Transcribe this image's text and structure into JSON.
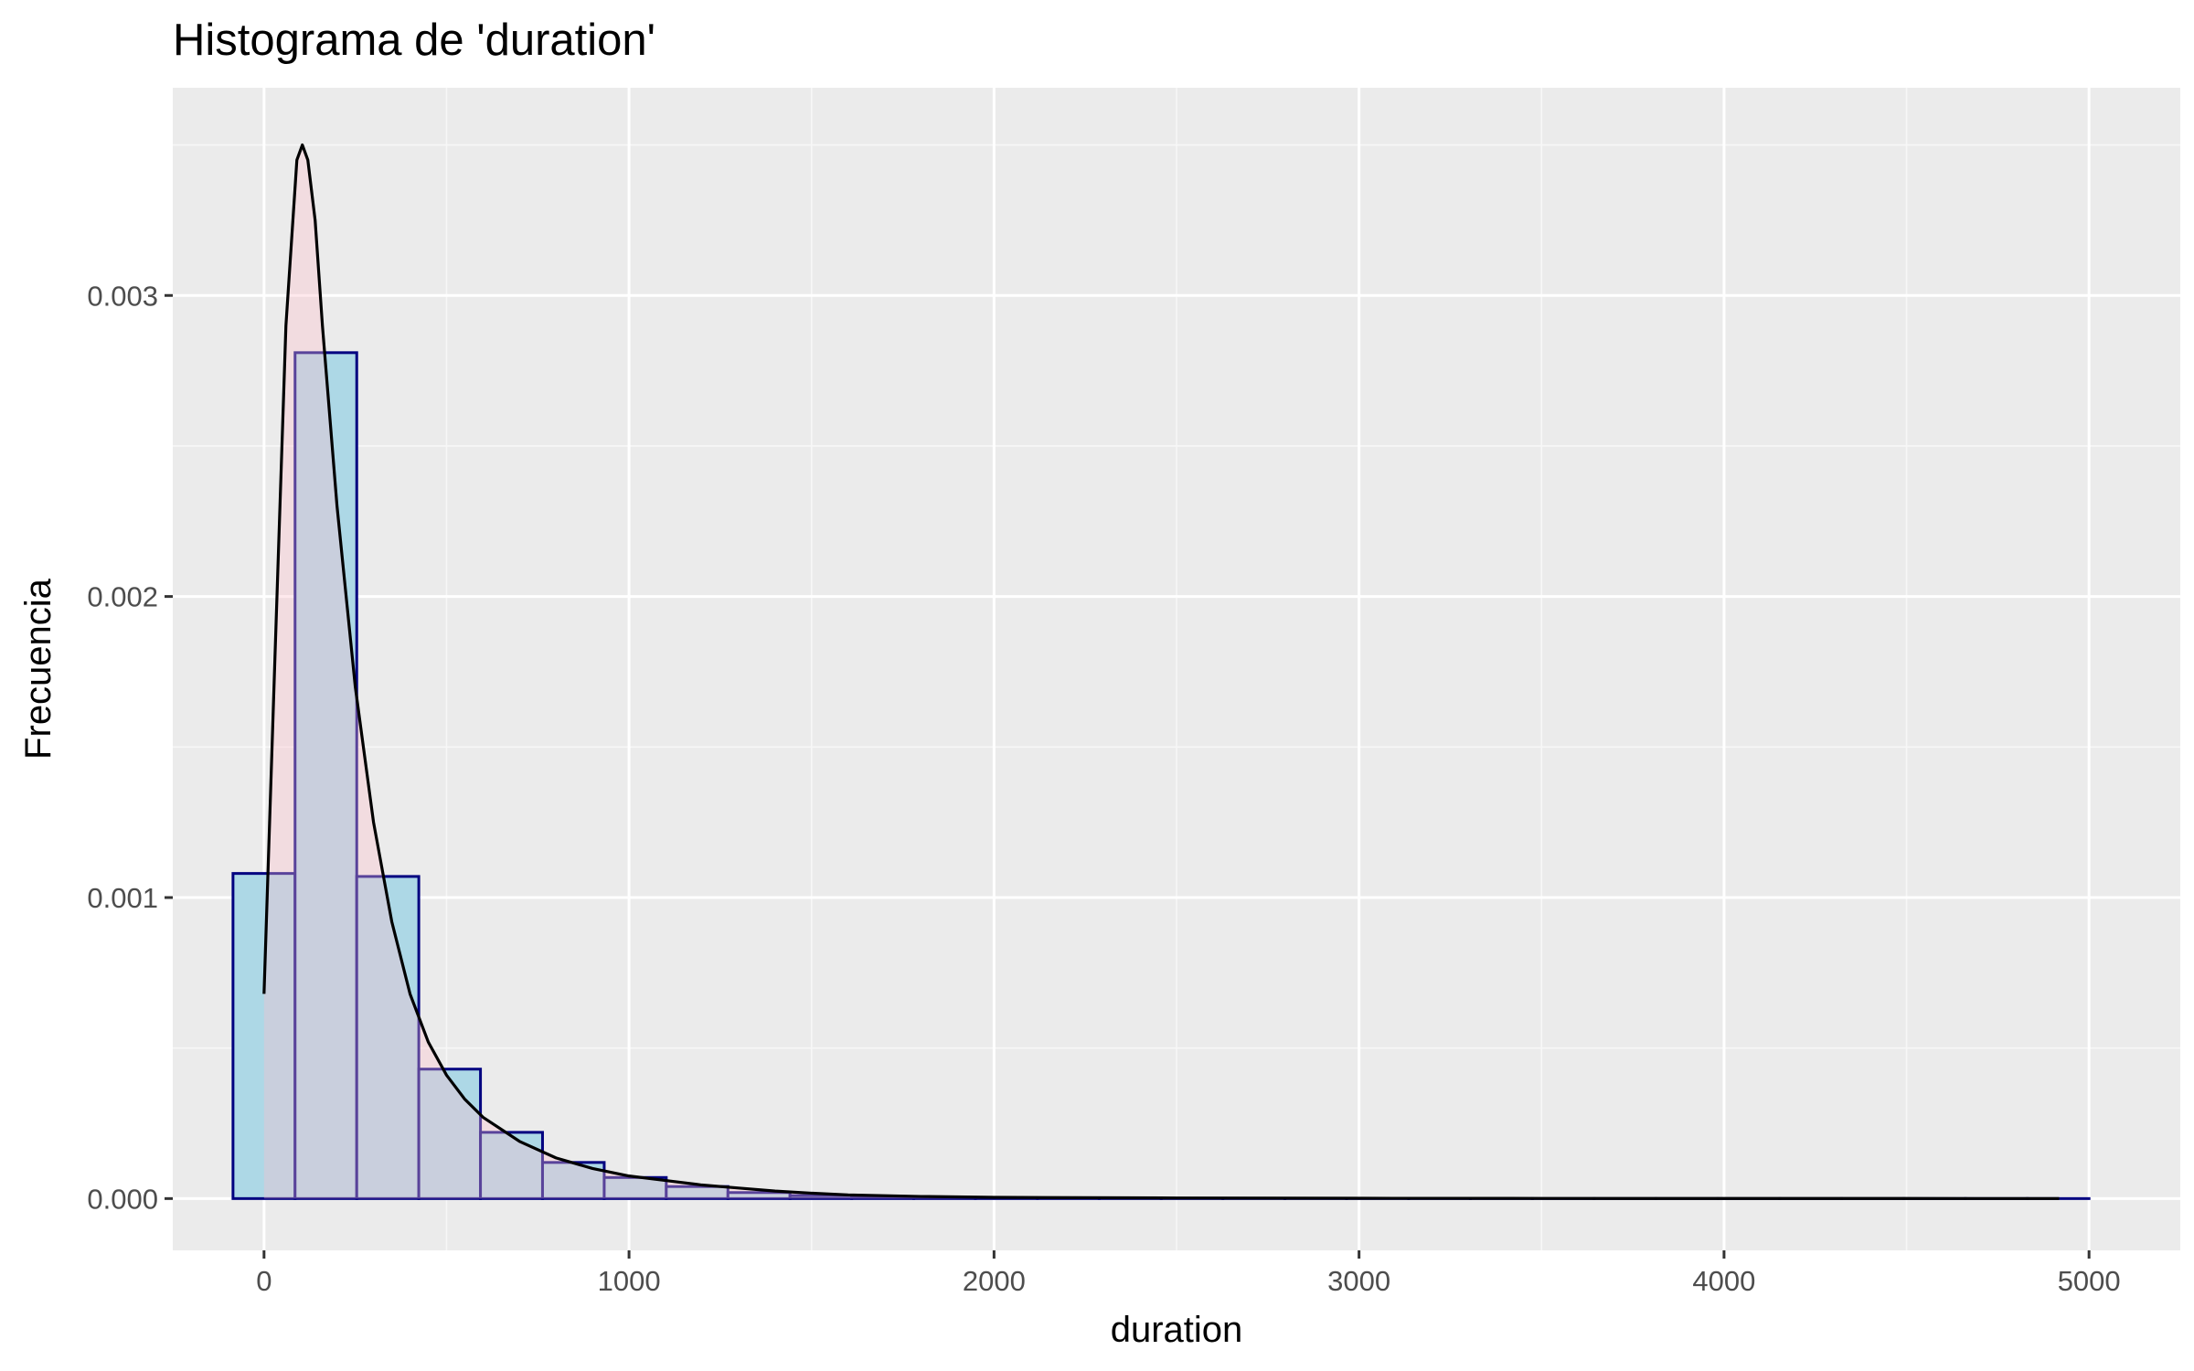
{
  "chart_data": {
    "type": "bar",
    "title": "Histograma de 'duration'",
    "xlabel": "duration",
    "ylabel": "Frecuencia",
    "xlim": [
      -250,
      5250
    ],
    "ylim": [
      -0.000172,
      0.00369
    ],
    "grid": true,
    "x_ticks": [
      0,
      1000,
      2000,
      3000,
      4000,
      5000
    ],
    "x_tick_labels": [
      "0",
      "1000",
      "2000",
      "3000",
      "4000",
      "5000"
    ],
    "y_ticks": [
      0,
      0.001,
      0.002,
      0.003
    ],
    "y_tick_labels": [
      "0.000",
      "0.001",
      "0.002",
      "0.003"
    ],
    "bins": [
      {
        "start": -85,
        "end": 85,
        "value": 0.00108
      },
      {
        "start": 85,
        "end": 254,
        "value": 0.00281
      },
      {
        "start": 254,
        "end": 424,
        "value": 0.00107
      },
      {
        "start": 424,
        "end": 593,
        "value": 0.00043
      },
      {
        "start": 593,
        "end": 763,
        "value": 0.00022
      },
      {
        "start": 763,
        "end": 932,
        "value": 0.00012
      },
      {
        "start": 932,
        "end": 1102,
        "value": 7e-05
      },
      {
        "start": 1102,
        "end": 1271,
        "value": 4e-05
      },
      {
        "start": 1271,
        "end": 1441,
        "value": 2e-05
      },
      {
        "start": 1441,
        "end": 1610,
        "value": 1e-05
      },
      {
        "start": 1610,
        "end": 1780,
        "value": 5e-06
      },
      {
        "start": 1780,
        "end": 1949,
        "value": 3e-06
      },
      {
        "start": 1949,
        "end": 2119,
        "value": 2e-06
      },
      {
        "start": 2119,
        "end": 2288,
        "value": 1e-06
      },
      {
        "start": 2288,
        "end": 2458,
        "value": 1e-06
      },
      {
        "start": 2458,
        "end": 2627,
        "value": 0
      },
      {
        "start": 2627,
        "end": 2797,
        "value": 0
      },
      {
        "start": 2797,
        "end": 2966,
        "value": 0
      },
      {
        "start": 2966,
        "end": 3136,
        "value": 0
      },
      {
        "start": 3136,
        "end": 3305,
        "value": 0
      },
      {
        "start": 3305,
        "end": 3475,
        "value": 0
      },
      {
        "start": 3475,
        "end": 3644,
        "value": 0
      },
      {
        "start": 3644,
        "end": 3814,
        "value": 0
      },
      {
        "start": 3814,
        "end": 3983,
        "value": 0
      },
      {
        "start": 3983,
        "end": 4153,
        "value": 0
      },
      {
        "start": 4153,
        "end": 4322,
        "value": 0
      },
      {
        "start": 4322,
        "end": 4492,
        "value": 0
      },
      {
        "start": 4492,
        "end": 4661,
        "value": 0
      },
      {
        "start": 4661,
        "end": 4831,
        "value": 0
      },
      {
        "start": 4831,
        "end": 5000,
        "value": 0
      }
    ],
    "density": {
      "x": [
        0,
        30,
        60,
        90,
        105,
        120,
        140,
        160,
        200,
        250,
        300,
        350,
        400,
        450,
        500,
        550,
        600,
        700,
        800,
        900,
        1000,
        1100,
        1200,
        1300,
        1400,
        1500,
        1600,
        1800,
        2000,
        2500,
        3000,
        3500,
        4000,
        4500,
        4918
      ],
      "y": [
        0.00068,
        0.0018,
        0.0029,
        0.00345,
        0.0035,
        0.00345,
        0.00325,
        0.0029,
        0.0023,
        0.0017,
        0.00125,
        0.00092,
        0.00068,
        0.00052,
        0.00041,
        0.00033,
        0.00027,
        0.00019,
        0.000135,
        0.0001,
        7.5e-05,
        6e-05,
        4.5e-05,
        3.5e-05,
        2.5e-05,
        1.8e-05,
        1.2e-05,
        7e-06,
        4e-06,
        2e-06,
        1e-06,
        5e-07,
        3e-07,
        2e-07,
        1e-07
      ]
    },
    "colors": {
      "bar_fill": "#ADD8E6",
      "bar_outline": "#000080",
      "density_fill": "#FFC0CB",
      "density_line": "#000000",
      "panel_background": "#EBEBEB",
      "grid_major": "#FFFFFF",
      "grid_minor": "#F7F7F7"
    }
  }
}
